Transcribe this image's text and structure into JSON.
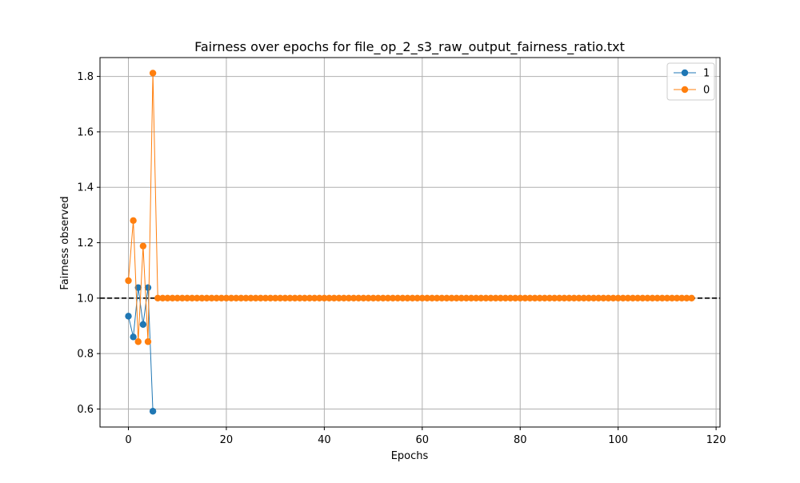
{
  "chart_data": {
    "type": "line",
    "title": "Fairness over epochs for file_op_2_s3_raw_output_fairness_ratio.txt",
    "xlabel": "Epochs",
    "ylabel": "Fairness observed",
    "xlim": [
      -5.8,
      120.8
    ],
    "ylim": [
      0.535,
      1.868
    ],
    "xticks": [
      0,
      20,
      40,
      60,
      80,
      100,
      120
    ],
    "yticks": [
      0.6,
      0.8,
      1.0,
      1.2,
      1.4,
      1.6,
      1.8
    ],
    "grid": true,
    "legend_position": "top-right",
    "reference_line": {
      "y": 1.0,
      "style": "dashed",
      "color": "#000000"
    },
    "series": [
      {
        "name": "1",
        "color": "#1f77b4",
        "x": [
          0,
          1,
          2,
          3,
          4,
          5
        ],
        "y": [
          0.935,
          0.86,
          1.038,
          0.905,
          1.038,
          0.592
        ]
      },
      {
        "name": "0",
        "color": "#ff7f0e",
        "x_start": 0,
        "x_end": 115,
        "y_head": [
          1.063,
          1.28,
          0.843,
          1.188,
          0.843,
          1.812
        ],
        "y_tail": 1.0
      }
    ]
  }
}
